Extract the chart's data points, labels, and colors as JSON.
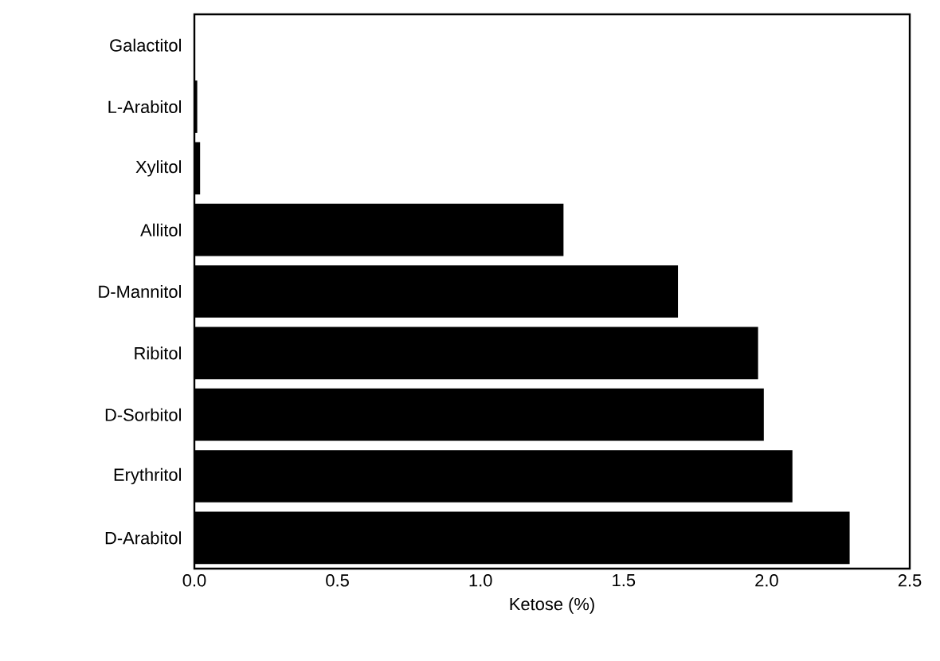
{
  "chart_data": {
    "type": "bar",
    "orientation": "horizontal",
    "xlabel": "Ketose (%)",
    "categories": [
      "Galactitol",
      "L-Arabitol",
      "Xylitol",
      "Allitol",
      "D-Mannitol",
      "Ribitol",
      "D-Sorbitol",
      "Erythritol",
      "D-Arabitol"
    ],
    "values": [
      0,
      0.01,
      0.02,
      1.29,
      1.69,
      1.97,
      1.99,
      2.09,
      2.29
    ],
    "color": "#000000",
    "xlim": [
      0,
      2.5
    ],
    "xticks": [
      {
        "value": 0,
        "label": "0.0"
      },
      0.5,
      {
        "value": 1,
        "label": "1.0"
      },
      1.5,
      {
        "value": 2,
        "label": "2.0"
      },
      2.5
    ],
    "grid": false
  }
}
